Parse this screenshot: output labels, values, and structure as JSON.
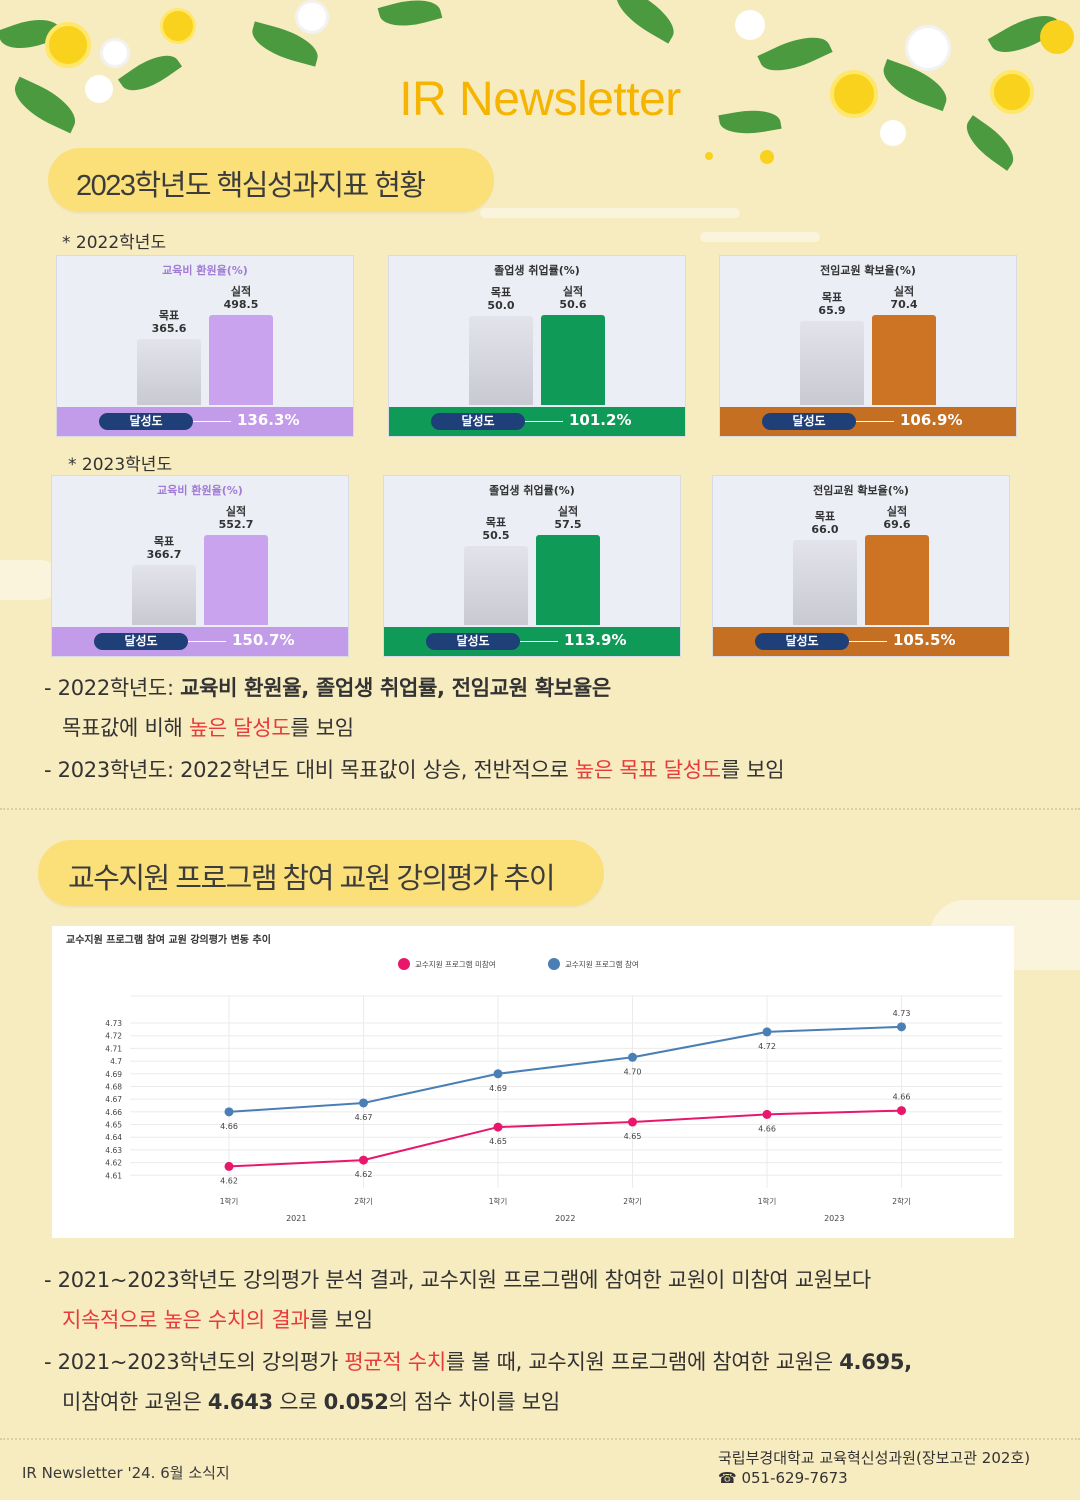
{
  "header": {
    "title": "IR Newsletter"
  },
  "section1": {
    "heading": "2023학년도 핵심성과지표 현황",
    "years": [
      {
        "label": "* 2022학년도",
        "cards": [
          {
            "title": "교육비 환원율(%)",
            "target_label": "목표",
            "target": 365.6,
            "target_text": "365.6",
            "actual_label": "실적",
            "actual": 498.5,
            "actual_text": "498.5",
            "badge": "달성도",
            "rate": "136.3%",
            "color": "#c9a3ee",
            "strip": "#c29ce8",
            "title_color": "#a07cd6"
          },
          {
            "title": "졸업생 취업률(%)",
            "target_label": "목표",
            "target": 50.0,
            "target_text": "50.0",
            "actual_label": "실적",
            "actual": 50.6,
            "actual_text": "50.6",
            "badge": "달성도",
            "rate": "101.2%",
            "color": "#0f9a58",
            "strip": "#0f9a58",
            "title_color": "#333333"
          },
          {
            "title": "전임교원 확보율(%)",
            "target_label": "목표",
            "target": 65.9,
            "target_text": "65.9",
            "actual_label": "실적",
            "actual": 70.4,
            "actual_text": "70.4",
            "badge": "달성도",
            "rate": "106.9%",
            "color": "#cd7424",
            "strip": "#c46f22",
            "title_color": "#333333"
          }
        ]
      },
      {
        "label": "* 2023학년도",
        "cards": [
          {
            "title": "교육비 환원율(%)",
            "target_label": "목표",
            "target": 366.7,
            "target_text": "366.7",
            "actual_label": "실적",
            "actual": 552.7,
            "actual_text": "552.7",
            "badge": "달성도",
            "rate": "150.7%",
            "color": "#c9a3ee",
            "strip": "#c29ce8",
            "title_color": "#a07cd6"
          },
          {
            "title": "졸업생 취업률(%)",
            "target_label": "목표",
            "target": 50.5,
            "target_text": "50.5",
            "actual_label": "실적",
            "actual": 57.5,
            "actual_text": "57.5",
            "badge": "달성도",
            "rate": "113.9%",
            "color": "#0f9a58",
            "strip": "#0f9a58",
            "title_color": "#333333"
          },
          {
            "title": "전임교원 확보율(%)",
            "target_label": "목표",
            "target": 66.0,
            "target_text": "66.0",
            "actual_label": "실적",
            "actual": 69.6,
            "actual_text": "69.6",
            "badge": "달성도",
            "rate": "105.5%",
            "color": "#cd7424",
            "strip": "#c46f22",
            "title_color": "#333333"
          }
        ]
      }
    ],
    "notes": {
      "l1_a": "- 2022학년도: ",
      "l1_b": "교육비 환원율, 졸업생 취업률, 전임교원 확보율은",
      "l2_a": "목표값에 비해 ",
      "l2_b": "높은 달성도",
      "l2_c": "를 보임",
      "l3_a": "- 2023학년도: 2022학년도 대비 목표값이 상승, 전반적으로 ",
      "l3_b": "높은 목표 달성도",
      "l3_c": "를 보임"
    }
  },
  "section2": {
    "heading": "교수지원 프로그램 참여 교원 강의평가 추이",
    "notes": {
      "l1": "- 2021~2023학년도 강의평가 분석 결과, 교수지원 프로그램에 참여한 교원이 미참여 교원보다",
      "l2_a": "지속적으로 높은 수치의 결과",
      "l2_b": "를 보임",
      "l3_a": "- 2021~2023학년도의 강의평가 ",
      "l3_b": "평균적 수치",
      "l3_c": "를 볼 때, 교수지원 프로그램에 참여한 교원은 ",
      "l3_d": "4.695,",
      "l4_a": "미참여한 교원은 ",
      "l4_b": "4.643",
      "l4_c": " 으로 ",
      "l4_d": "0.052",
      "l4_e": "의 점수 차이를 보임"
    }
  },
  "chart_data": {
    "type": "line",
    "title": "교수지원 프로그램 참여 교원 강의평가 변동 추이",
    "categories": [
      "1학기",
      "2학기",
      "1학기",
      "2학기",
      "1학기",
      "2학기"
    ],
    "groups": [
      "2021",
      "2022",
      "2023"
    ],
    "yticks": [
      4.61,
      4.62,
      4.63,
      4.64,
      4.65,
      4.66,
      4.67,
      4.68,
      4.69,
      4.7,
      4.71,
      4.72,
      4.73
    ],
    "ytick_labels": [
      "4.61",
      "4.62",
      "4.63",
      "4.64",
      "4.65",
      "4.66",
      "4.67",
      "4.68",
      "4.69",
      "4.7",
      "4.71",
      "4.72",
      "4.73"
    ],
    "ylim": [
      4.6,
      4.745
    ],
    "grid": true,
    "legend_position": "top-center",
    "series": [
      {
        "name": "교수지원 프로그램 미참여",
        "color": "#e8176b",
        "values": [
          4.617,
          4.622,
          4.648,
          4.652,
          4.658,
          4.661
        ],
        "labels": [
          "4.62",
          "4.62",
          "4.65",
          "4.65",
          "4.66",
          "4.66"
        ]
      },
      {
        "name": "교수지원 프로그램 참여",
        "color": "#4a7fb5",
        "values": [
          4.66,
          4.667,
          4.69,
          4.703,
          4.723,
          4.727
        ],
        "labels": [
          "4.66",
          "4.67",
          "4.69",
          "4.70",
          "4.72",
          "4.73"
        ]
      }
    ]
  },
  "footer": {
    "left": "IR Newsletter '24. 6월 소식지",
    "right1": "국립부경대학교 교육혁신성과원(장보고관 202호)",
    "right2": "☎ 051-629-7673"
  }
}
